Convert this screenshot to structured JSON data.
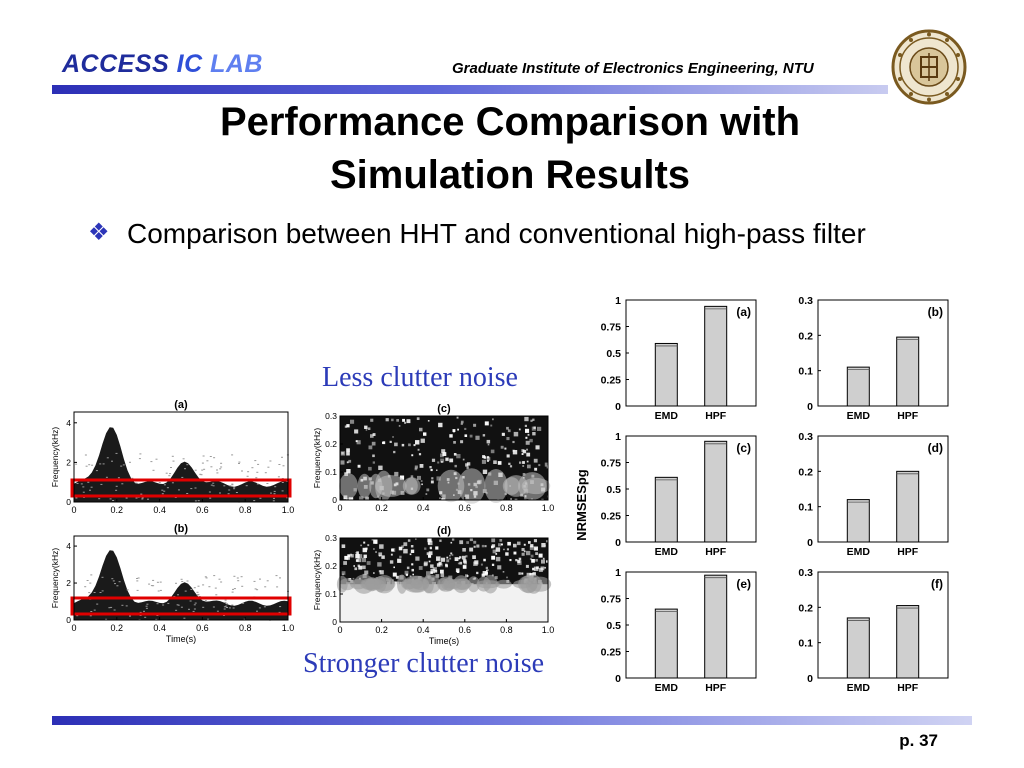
{
  "header": {
    "lab_word1": "ACCESS",
    "lab_word2": "IC",
    "lab_word3": "LAB",
    "institute": "Graduate Institute of Electronics Engineering, NTU",
    "seal_icon": "university-seal-icon"
  },
  "slide": {
    "title_line1": "Performance Comparison with",
    "title_line2": "Simulation Results",
    "bullet_symbol": "❖",
    "bullet_text": "Comparison between HHT and conventional high-pass filter"
  },
  "annotations": {
    "less_clutter": "Less clutter noise",
    "stronger_clutter": "Stronger clutter noise"
  },
  "page": {
    "number": "p. 37"
  },
  "colors": {
    "accent_blue": "#2c3bb8",
    "highlight_red": "#e00000",
    "bar_fill": "#cfcfcf"
  },
  "spectrograms": {
    "left": [
      {
        "label": "(a)",
        "ylabel": "Frequency(kHz)",
        "yticks": [
          "0",
          "2",
          "4"
        ],
        "xticks": [
          "0",
          "0.2",
          "0.4",
          "0.6",
          "0.8",
          "1.0"
        ],
        "xlabel": ""
      },
      {
        "label": "(b)",
        "ylabel": "Frequency(kHz)",
        "yticks": [
          "0",
          "2",
          "4"
        ],
        "xticks": [
          "0",
          "0.2",
          "0.4",
          "0.6",
          "0.8",
          "1.0"
        ],
        "xlabel": "Time(s)"
      }
    ],
    "right": [
      {
        "label": "(c)",
        "ylabel": "Frequency(kHz)",
        "yticks": [
          "0",
          "0.1",
          "0.2",
          "0.3"
        ],
        "xticks": [
          "0",
          "0.2",
          "0.4",
          "0.6",
          "0.8",
          "1.0"
        ],
        "xlabel": ""
      },
      {
        "label": "(d)",
        "ylabel": "Frequency(kHz)",
        "yticks": [
          "0",
          "0.1",
          "0.2",
          "0.3"
        ],
        "xticks": [
          "0",
          "0.2",
          "0.4",
          "0.6",
          "0.8",
          "1.0"
        ],
        "xlabel": "Time(s)"
      }
    ]
  },
  "chart_data": {
    "type": "bar",
    "ylabel": "NRMSESpg",
    "categories": [
      "EMD",
      "HPF"
    ],
    "panels": [
      {
        "label": "(a)",
        "values": [
          0.59,
          0.94
        ],
        "ylim": [
          0,
          1
        ],
        "yticks": [
          "0",
          "0.25",
          "0.5",
          "0.75",
          "1"
        ]
      },
      {
        "label": "(b)",
        "values": [
          0.11,
          0.195
        ],
        "ylim": [
          0,
          0.3
        ],
        "yticks": [
          "0",
          "0.1",
          "0.2",
          "0.3"
        ]
      },
      {
        "label": "(c)",
        "values": [
          0.61,
          0.95
        ],
        "ylim": [
          0,
          1
        ],
        "yticks": [
          "0",
          "0.25",
          "0.5",
          "0.75",
          "1"
        ]
      },
      {
        "label": "(d)",
        "values": [
          0.12,
          0.2
        ],
        "ylim": [
          0,
          0.3
        ],
        "yticks": [
          "0",
          "0.1",
          "0.2",
          "0.3"
        ]
      },
      {
        "label": "(e)",
        "values": [
          0.65,
          0.97
        ],
        "ylim": [
          0,
          1
        ],
        "yticks": [
          "0",
          "0.25",
          "0.5",
          "0.75",
          "1"
        ]
      },
      {
        "label": "(f)",
        "values": [
          0.17,
          0.205
        ],
        "ylim": [
          0,
          0.3
        ],
        "yticks": [
          "0",
          "0.1",
          "0.2",
          "0.3"
        ]
      }
    ]
  }
}
